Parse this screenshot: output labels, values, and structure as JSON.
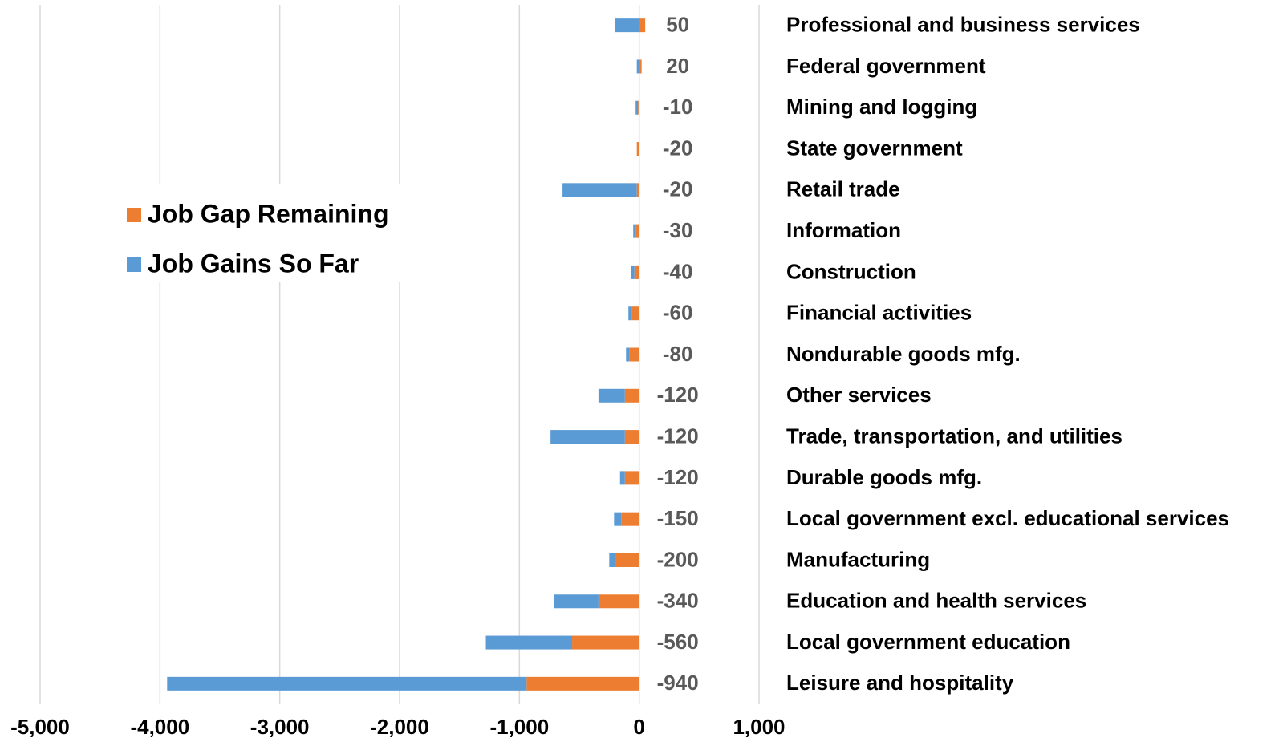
{
  "chart_data": {
    "type": "bar",
    "orientation": "horizontal",
    "stacked": true,
    "categories": [
      "Professional and business services",
      "Federal government",
      "Mining and logging",
      "State government",
      "Retail trade",
      "Information",
      "Construction",
      "Financial activities",
      "Nondurable goods mfg.",
      "Other services",
      "Trade, transportation, and utilities",
      "Durable goods mfg.",
      "Local government excl. educational services",
      "Manufacturing",
      "Education and health services",
      "Local government education",
      "Leisure and hospitality"
    ],
    "series": [
      {
        "name": "Job Gap Remaining",
        "color": "#ed7d31",
        "values": [
          50,
          20,
          -10,
          -20,
          -20,
          -30,
          -40,
          -60,
          -80,
          -120,
          -120,
          -120,
          -150,
          -200,
          -340,
          -560,
          -940
        ]
      },
      {
        "name": "Job Gains So Far",
        "color": "#5b9bd5",
        "values": [
          -200,
          -20,
          -20,
          0,
          -620,
          -20,
          -30,
          -30,
          -30,
          -220,
          -620,
          -40,
          -60,
          -50,
          -370,
          -720,
          -3000
        ]
      }
    ],
    "xlim": [
      -5000,
      1000
    ],
    "xticks": [
      {
        "value": -5000,
        "label": "-5,000"
      },
      {
        "value": -4000,
        "label": "-4,000"
      },
      {
        "value": -3000,
        "label": "-3,000"
      },
      {
        "value": -2000,
        "label": "-2,000"
      },
      {
        "value": -1000,
        "label": "-1,000"
      },
      0,
      {
        "value": 1000,
        "label": "1,000"
      }
    ],
    "grid": true,
    "legend": "left"
  }
}
